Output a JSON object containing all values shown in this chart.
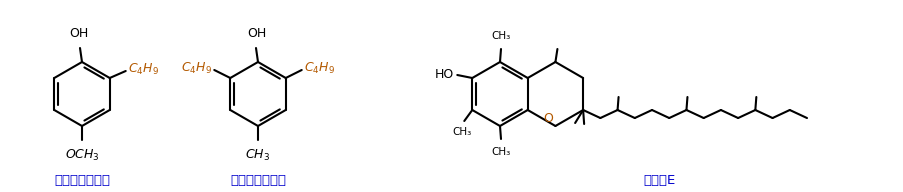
{
  "bg_color": "#ffffff",
  "line_color": "#000000",
  "blue_color": "#0000cc",
  "orange_color": "#b35900",
  "fig_width": 9.04,
  "fig_height": 1.92,
  "dpi": 100,
  "label1": "丁基羟基茕香醒",
  "label2": "二丁基羟基甲苯",
  "label3": "维生素E"
}
